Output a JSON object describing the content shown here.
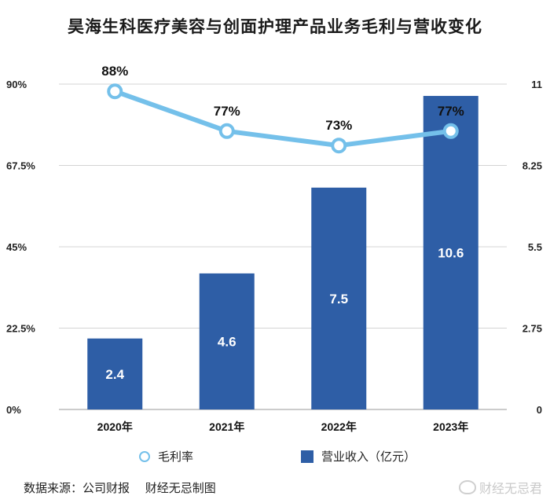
{
  "chart_data": {
    "type": "bar",
    "title": "昊海生科医疗美容与创面护理产品业务毛利与营收变化",
    "categories": [
      "2020年",
      "2021年",
      "2022年",
      "2023年"
    ],
    "series": [
      {
        "name": "营业收入（亿元）",
        "kind": "bar",
        "axis": "right",
        "values": [
          2.4,
          4.6,
          7.5,
          10.6
        ],
        "labels": [
          "2.4",
          "4.6",
          "7.5",
          "10.6"
        ],
        "color": "#2e5ea6"
      },
      {
        "name": "毛利率",
        "kind": "line",
        "axis": "left",
        "values": [
          88,
          77,
          73,
          77
        ],
        "labels": [
          "88%",
          "77%",
          "73%",
          "77%"
        ],
        "color": "#74c0ea"
      }
    ],
    "y_left": {
      "lim": [
        0,
        90
      ],
      "ticks": [
        0,
        22.5,
        45,
        67.5,
        90
      ],
      "tick_labels": [
        "0%",
        "22.5%",
        "45%",
        "67.5%",
        "90%"
      ]
    },
    "y_right": {
      "lim": [
        0,
        11
      ],
      "ticks": [
        0,
        2.75,
        5.5,
        8.25,
        11
      ],
      "tick_labels": [
        "0",
        "2.75",
        "5.5",
        "8.25",
        "11"
      ]
    },
    "grid": true,
    "legend": "bottom"
  },
  "legend": {
    "line_label": "毛利率",
    "bar_label": "营业收入（亿元）"
  },
  "source": "数据来源：公司财报　 财经无忌制图",
  "watermark": "财经无忌君"
}
